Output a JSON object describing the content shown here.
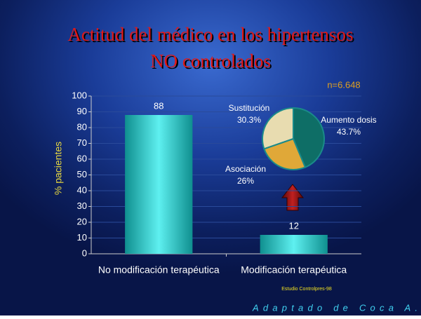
{
  "chart_data": [
    {
      "type": "bar",
      "title": [
        "Actitud del médico en los hipertensos",
        "NO controlados"
      ],
      "y_label": "% pacientes",
      "categories": [
        "No modificación terapéutica",
        "Modificación terapéutica"
      ],
      "values": [
        88,
        12
      ],
      "color": "#22c8c8",
      "ylim": [
        0,
        100
      ],
      "yticks": [
        0,
        10,
        20,
        30,
        40,
        50,
        60,
        70,
        80,
        90,
        100
      ],
      "grid": true
    },
    {
      "type": "pie",
      "annotation": "n=6.648",
      "categories": [
        "Sustitución",
        "Aumento dosis",
        "Asociación"
      ],
      "values": [
        30.3,
        43.7,
        26
      ],
      "value_labels": [
        "30.3%",
        "43.7%",
        "26%"
      ],
      "colors": [
        "#e8dcb0",
        "#0e6e66",
        "#e0a838"
      ]
    }
  ],
  "source": "Estudio Controlpres-98",
  "credit": "Adaptado de Coca A."
}
